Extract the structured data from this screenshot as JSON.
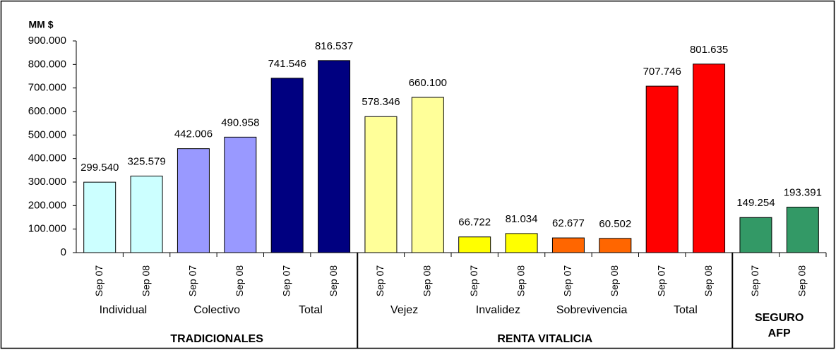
{
  "chart_data": {
    "type": "bar",
    "ylabel": "MM $",
    "categories": [
      "Sep 07",
      "Sep 08",
      "Sep 07",
      "Sep 08",
      "Sep 07",
      "Sep 08",
      "Sep 07",
      "Sep 08",
      "Sep 07",
      "Sep 08",
      "Sep 07",
      "Sep 08",
      "Sep 07",
      "Sep 08",
      "Sep 07",
      "Sep 08"
    ],
    "values": [
      299540,
      325579,
      442006,
      490958,
      741546,
      816537,
      578346,
      660100,
      66722,
      81034,
      62677,
      60502,
      707746,
      801635,
      149254,
      193391
    ],
    "value_labels": [
      "299.540",
      "325.579",
      "442.006",
      "490.958",
      "741.546",
      "816.537",
      "578.346",
      "660.100",
      "66.722",
      "81.034",
      "62.677",
      "60.502",
      "707.746",
      "801.635",
      "149.254",
      "193.391"
    ],
    "colors": [
      "#ccffff",
      "#ccffff",
      "#9999ff",
      "#9999ff",
      "#000080",
      "#000080",
      "#ffff99",
      "#ffff99",
      "#ffff00",
      "#ffff00",
      "#ff6600",
      "#ff6600",
      "#ff0000",
      "#ff0000",
      "#339966",
      "#339966"
    ],
    "groups": [
      {
        "name": "TRADICIONALES",
        "subgroups": [
          "Individual",
          "Colectivo",
          "Total"
        ]
      },
      {
        "name": "RENTA VITALICIA",
        "subgroups": [
          "Vejez",
          "Invalidez",
          "Sobrevivencia",
          "Total"
        ]
      },
      {
        "name": "SEGURO AFP",
        "subgroups": []
      }
    ],
    "ylim": [
      0,
      900000
    ],
    "yticks": [
      0,
      {
        "value": 100000,
        "label": "100.000"
      },
      {
        "value": 200000,
        "label": "200.000"
      },
      {
        "value": 300000,
        "label": "300.000"
      },
      {
        "value": 400000,
        "label": "400.000"
      },
      {
        "value": 500000,
        "label": "500.000"
      },
      {
        "value": 600000,
        "label": "600.000"
      },
      {
        "value": 700000,
        "label": "700.000"
      },
      {
        "value": 800000,
        "label": "800.000"
      },
      {
        "value": 900000,
        "label": "900.000"
      }
    ],
    "grid": false
  }
}
